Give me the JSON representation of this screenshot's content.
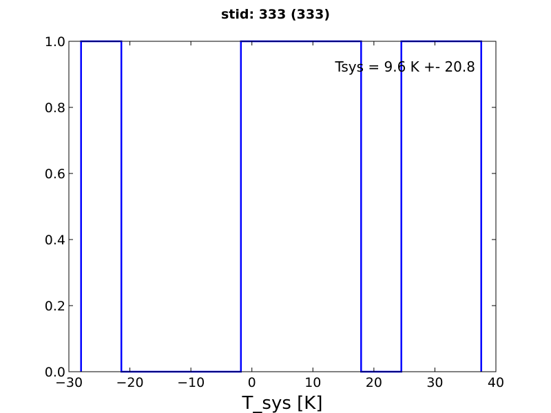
{
  "chart_data": {
    "type": "line",
    "title": "stid: 333 (333)",
    "xlabel": "T_sys [K]",
    "ylabel": "",
    "xlim": [
      -30,
      40
    ],
    "ylim": [
      0.0,
      1.0
    ],
    "x_ticks": [
      -30,
      -20,
      -10,
      0,
      10,
      20,
      30,
      40
    ],
    "x_tick_labels": [
      "−30",
      "−20",
      "−10",
      "0",
      "10",
      "20",
      "30",
      "40"
    ],
    "y_ticks": [
      0.0,
      0.2,
      0.4,
      0.6,
      0.8,
      1.0
    ],
    "y_tick_labels": [
      "0.0",
      "0.2",
      "0.4",
      "0.6",
      "0.8",
      "1.0"
    ],
    "grid": false,
    "series": [
      {
        "color": "#0000ff",
        "drawstyle": "steps",
        "x": [
          -28.0,
          -28.0,
          -21.4,
          -21.4,
          -1.8,
          -1.8,
          17.9,
          17.9,
          24.5,
          24.5,
          37.6,
          37.6
        ],
        "y": [
          0.0,
          1.0,
          1.0,
          0.0,
          0.0,
          1.0,
          1.0,
          0.0,
          0.0,
          1.0,
          1.0,
          0.0
        ]
      }
    ],
    "annotations": [
      {
        "text": "Tsys = 9.6 K +- 20.8"
      }
    ]
  }
}
